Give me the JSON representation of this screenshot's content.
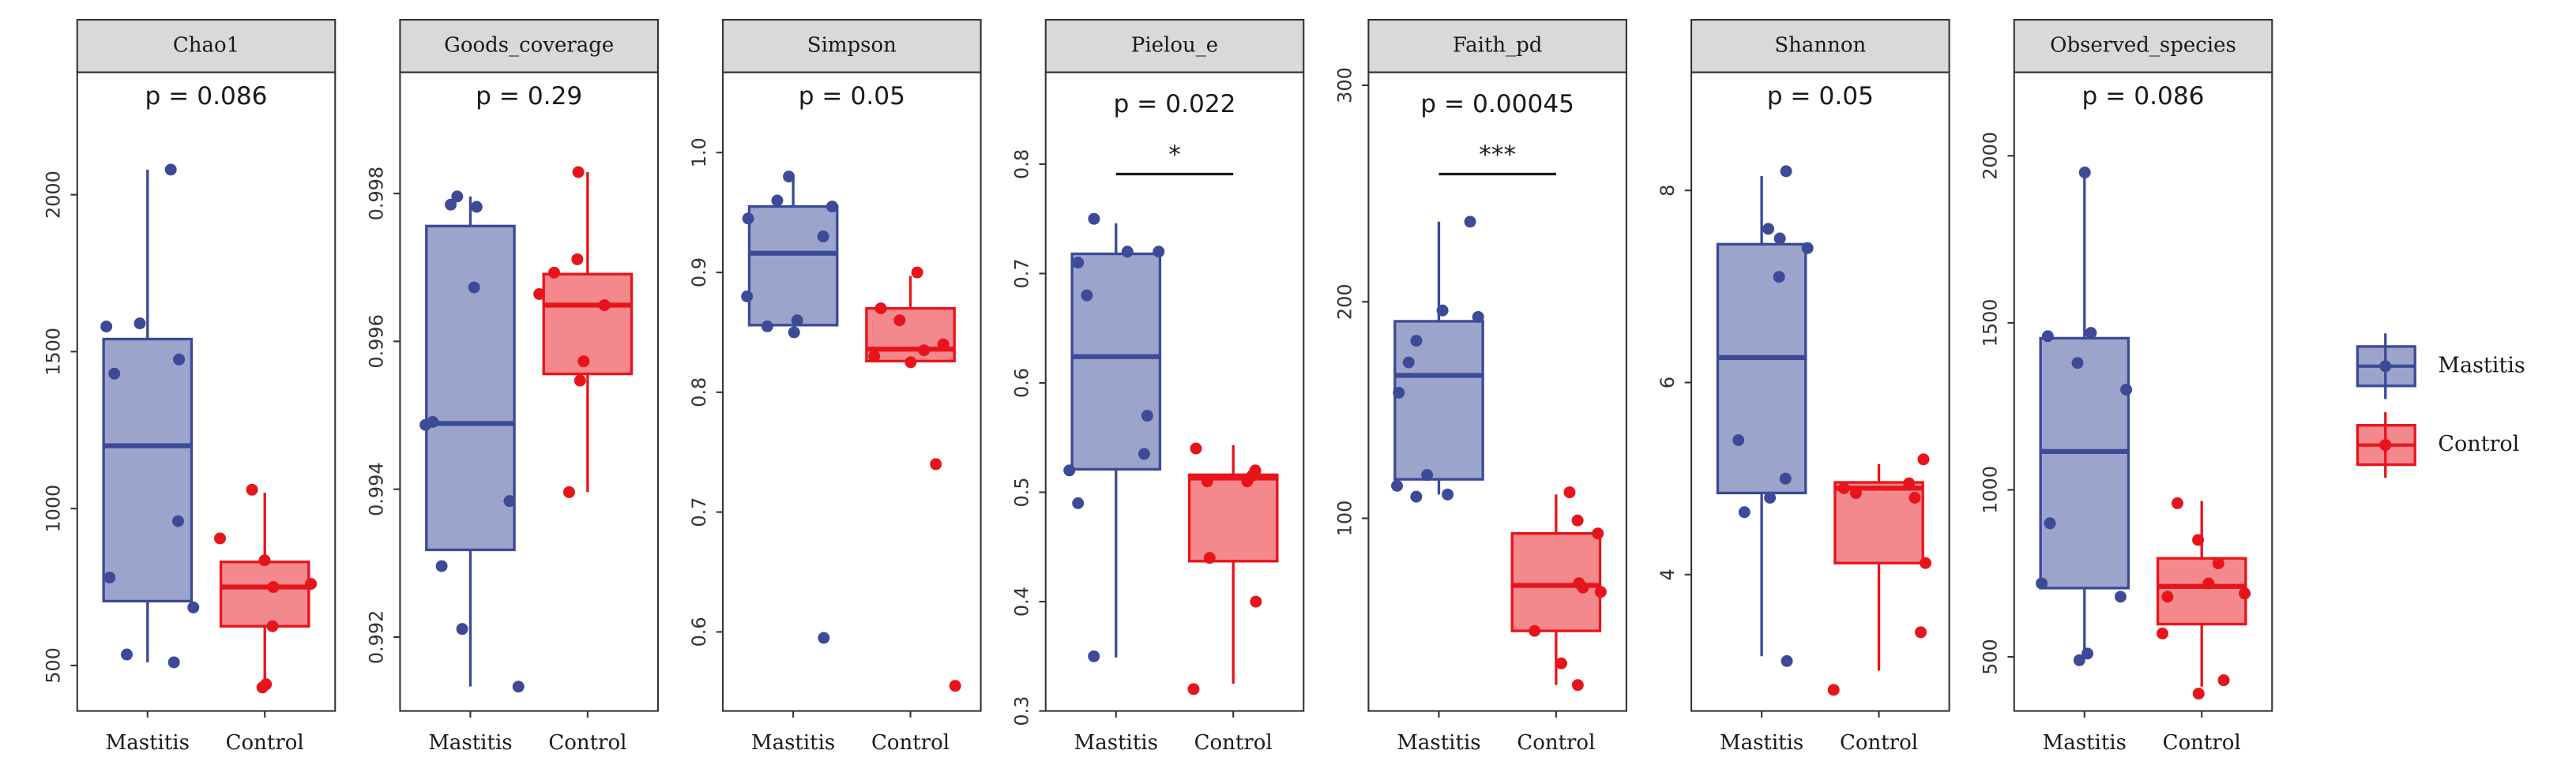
{
  "legend": {
    "position": "right",
    "series": [
      {
        "name": "Mastitis",
        "color": "#3c4a97"
      },
      {
        "name": "Control",
        "color": "#e8141b"
      }
    ]
  },
  "chart_data": [
    {
      "type": "box",
      "title": "Chao1",
      "subtitle": "p = 0.086",
      "categories": [
        "Mastitis",
        "Control"
      ],
      "ylim": [
        355,
        2390
      ],
      "yticks": [
        500,
        1000,
        1500,
        2000
      ],
      "boxes": [
        {
          "whisker_low": 510,
          "q1": 705,
          "median": 1200,
          "q3": 1540,
          "whisker_high": 2080
        },
        {
          "whisker_low": 430,
          "q1": 625,
          "median": 750,
          "q3": 830,
          "whisker_high": 1050
        }
      ],
      "points": [
        [
          2080,
          1580,
          1590,
          1475,
          1430,
          960,
          780,
          685,
          535,
          510
        ],
        [
          1060,
          905,
          835,
          760,
          750,
          625,
          440,
          430
        ]
      ]
    },
    {
      "type": "box",
      "title": "Goods_coverage",
      "subtitle": "p = 0.29",
      "categories": [
        "Mastitis",
        "Control"
      ],
      "ylim": [
        0.991,
        0.99964
      ],
      "yticks": [
        0.992,
        0.994,
        0.996,
        0.998
      ],
      "boxes": [
        {
          "whisker_low": 0.99133,
          "q1": 0.99318,
          "median": 0.99489,
          "q3": 0.99756,
          "whisker_high": 0.99796
        },
        {
          "whisker_low": 0.99396,
          "q1": 0.99556,
          "median": 0.99649,
          "q3": 0.99691,
          "whisker_high": 0.99829
        }
      ],
      "points": [
        [
          0.99782,
          0.99796,
          0.99785,
          0.99673,
          0.99491,
          0.99487,
          0.99384,
          0.99296,
          0.99211,
          0.99133
        ],
        [
          0.99829,
          0.99711,
          0.99693,
          0.99664,
          0.99649,
          0.99573,
          0.99547,
          0.99396
        ]
      ]
    },
    {
      "type": "box",
      "title": "Simpson",
      "subtitle": "p = 0.05",
      "categories": [
        "Mastitis",
        "Control"
      ],
      "ylim": [
        0.534,
        1.067
      ],
      "yticks": [
        0.6,
        0.7,
        0.8,
        0.9,
        {
          "value": 1,
          "label": "1.0"
        }
      ],
      "boxes": [
        {
          "whisker_low": 0.855,
          "q1": 0.856,
          "median": 0.916,
          "q3": 0.955,
          "whisker_high": 0.981
        },
        {
          "whisker_low": 0.824,
          "q1": 0.826,
          "median": 0.836,
          "q3": 0.87,
          "whisker_high": 0.897
        }
      ],
      "points": [
        [
          0.98,
          0.96,
          0.955,
          0.945,
          0.93,
          0.88,
          0.86,
          0.855,
          0.85,
          0.595
        ],
        [
          0.9,
          0.87,
          0.86,
          0.84,
          0.835,
          0.83,
          0.825,
          0.74,
          0.555
        ]
      ]
    },
    {
      "type": "box",
      "title": "Pielou_e",
      "subtitle": "p = 0.022",
      "annotation": "*",
      "categories": [
        "Mastitis",
        "Control"
      ],
      "ylim": [
        0.3,
        0.884
      ],
      "yticks": [
        0.3,
        0.4,
        0.5,
        0.6,
        0.7,
        0.8
      ],
      "boxes": [
        {
          "whisker_low": 0.349,
          "q1": 0.521,
          "median": 0.624,
          "q3": 0.718,
          "whisker_high": 0.746
        },
        {
          "whisker_low": 0.325,
          "q1": 0.437,
          "median": 0.513,
          "q3": 0.516,
          "whisker_high": 0.543
        }
      ],
      "points": [
        [
          0.75,
          0.72,
          0.72,
          0.71,
          0.68,
          0.57,
          0.535,
          0.52,
          0.49,
          0.35
        ],
        [
          0.54,
          0.52,
          0.515,
          0.51,
          0.51,
          0.44,
          0.4,
          0.32
        ]
      ]
    },
    {
      "type": "box",
      "title": "Faith_pd",
      "subtitle": "p = 0.00045",
      "annotation": "***",
      "categories": [
        "Mastitis",
        "Control"
      ],
      "ylim": [
        11,
        306
      ],
      "yticks": [
        100,
        200,
        300
      ],
      "boxes": [
        {
          "whisker_low": 111,
          "q1": 118,
          "median": 166,
          "q3": 191,
          "whisker_high": 237
        },
        {
          "whisker_low": 23,
          "q1": 48,
          "median": 69,
          "q3": 93,
          "whisker_high": 111
        }
      ],
      "points": [
        [
          237,
          196,
          193,
          182,
          172,
          158,
          120,
          115,
          111,
          110
        ],
        [
          112,
          99,
          93,
          70,
          68,
          66,
          48,
          33,
          23
        ]
      ]
    },
    {
      "type": "box",
      "title": "Shannon",
      "subtitle": "p = 0.05",
      "categories": [
        "Mastitis",
        "Control"
      ],
      "ylim": [
        2.58,
        9.23
      ],
      "yticks": [
        4,
        6,
        8
      ],
      "boxes": [
        {
          "whisker_low": 3.15,
          "q1": 4.85,
          "median": 6.26,
          "q3": 7.44,
          "whisker_high": 8.15
        },
        {
          "whisker_low": 3,
          "q1": 4.12,
          "median": 4.9,
          "q3": 4.96,
          "whisker_high": 5.15
        }
      ],
      "points": [
        [
          8.2,
          7.6,
          7.5,
          7.4,
          7.1,
          5.4,
          5,
          4.8,
          4.65,
          3.1
        ],
        [
          5.2,
          4.95,
          4.9,
          4.85,
          4.8,
          4.12,
          3.4,
          2.8
        ]
      ]
    },
    {
      "type": "box",
      "title": "Observed_species",
      "subtitle": "p = 0.086",
      "categories": [
        "Mastitis",
        "Control"
      ],
      "ylim": [
        338,
        2250
      ],
      "yticks": [
        500,
        1000,
        1500,
        2000
      ],
      "boxes": [
        {
          "whisker_low": 510,
          "q1": 706,
          "median": 1115,
          "q3": 1454,
          "whisker_high": 1940
        },
        {
          "whisker_low": 411,
          "q1": 598,
          "median": 711,
          "q3": 795,
          "whisker_high": 967
        }
      ],
      "points": [
        [
          1950,
          1470,
          1460,
          1380,
          1300,
          900,
          720,
          680,
          510,
          490
        ],
        [
          960,
          850,
          780,
          720,
          690,
          680,
          570,
          430,
          390
        ]
      ]
    }
  ]
}
